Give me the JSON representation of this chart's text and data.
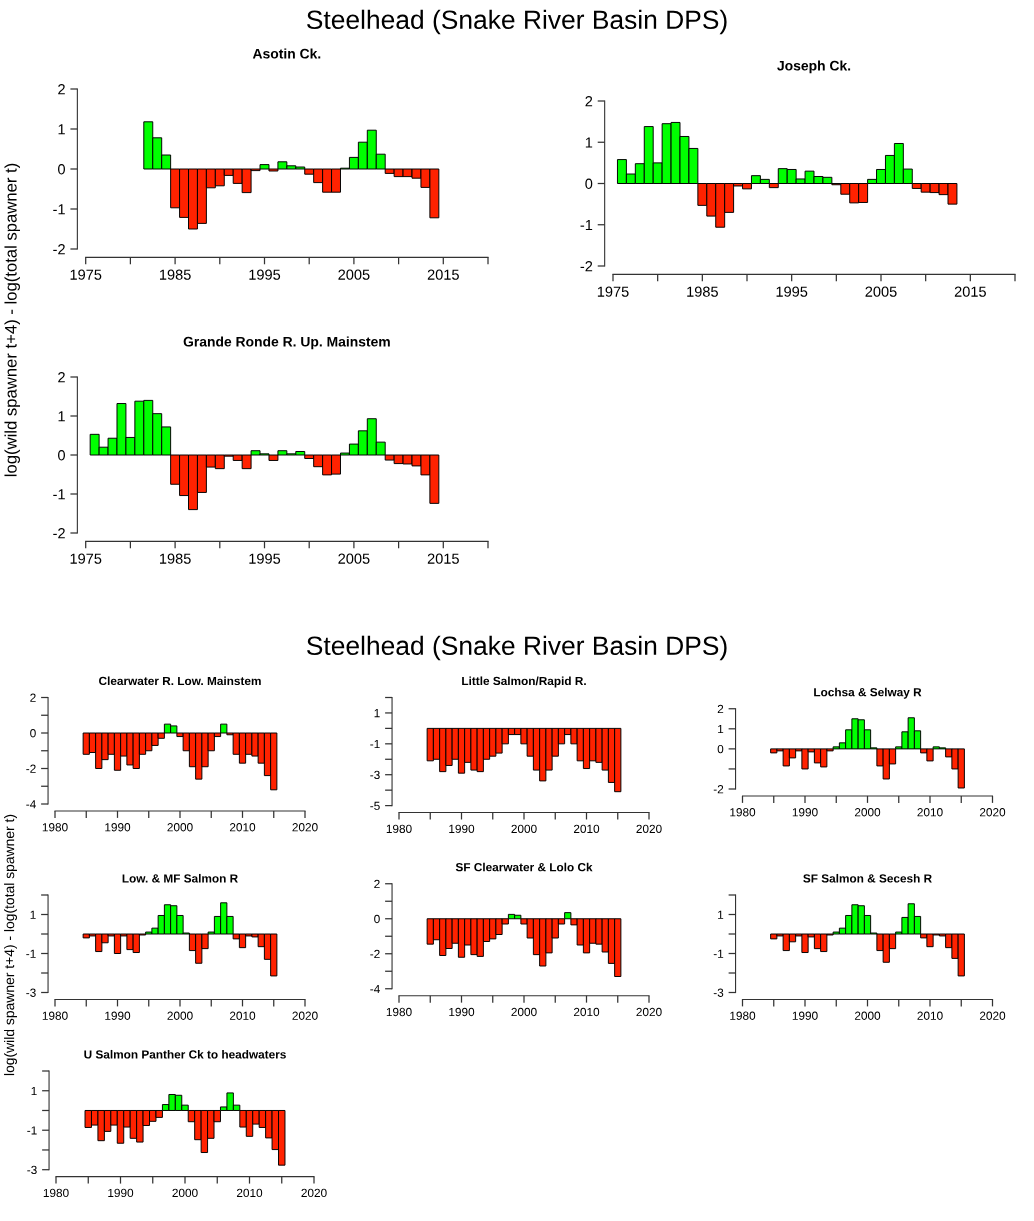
{
  "chart_data": [
    {
      "type": "bar",
      "title": "Asotin Ck.",
      "annotations": [
        "Steelhead (Snake River Basin DPS)"
      ],
      "ylabel": "log(wild spawner t+4) - log(total spawner t)",
      "x": [
        1982,
        1983,
        1984,
        1985,
        1986,
        1987,
        1988,
        1989,
        1990,
        1991,
        1992,
        1993,
        1994,
        1995,
        1996,
        1997,
        1998,
        1999,
        2000,
        2001,
        2002,
        2003,
        2004,
        2005,
        2006,
        2007,
        2008,
        2009,
        2010,
        2011,
        2012,
        2013,
        2014
      ],
      "values": [
        1.18,
        0.78,
        0.35,
        -0.97,
        -1.21,
        -1.5,
        -1.36,
        -0.47,
        -0.42,
        -0.16,
        -0.36,
        -0.59,
        -0.04,
        0.11,
        -0.05,
        0.18,
        0.08,
        0.05,
        -0.13,
        -0.34,
        -0.58,
        -0.58,
        0.02,
        0.29,
        0.67,
        0.97,
        0.37,
        -0.11,
        -0.19,
        -0.19,
        -0.23,
        -0.46,
        -1.22
      ],
      "colors": [
        "#00ff00",
        "#00ff00",
        "#00ff00",
        "#ff2200",
        "#ff2200",
        "#ff2200",
        "#ff2200",
        "#ff2200",
        "#ff2200",
        "#ff2200",
        "#ff2200",
        "#ff2200",
        "#ff2200",
        "#00ff00",
        "#ff2200",
        "#00ff00",
        "#00ff00",
        "#00ff00",
        "#ff2200",
        "#ff2200",
        "#ff2200",
        "#ff2200",
        "#00ff00",
        "#00ff00",
        "#00ff00",
        "#00ff00",
        "#00ff00",
        "#ff2200",
        "#ff2200",
        "#ff2200",
        "#ff2200",
        "#ff2200",
        "#ff2200"
      ],
      "xlim": [
        1975,
        2020
      ],
      "xticks": [
        1975,
        {
          "value": 1980,
          "label": null
        },
        1985,
        {
          "value": 1990,
          "label": null
        },
        1995,
        {
          "value": 2000,
          "label": null
        },
        2005,
        {
          "value": 2010,
          "label": null
        },
        2015,
        {
          "value": 2020,
          "label": null
        }
      ],
      "ylim": [
        -2,
        2
      ],
      "yticks": [
        2,
        1,
        0,
        -1,
        -2
      ]
    },
    {
      "type": "bar",
      "title": "Joseph Ck.",
      "x": [
        1976,
        1977,
        1978,
        1979,
        1980,
        1981,
        1982,
        1983,
        1984,
        1985,
        1986,
        1987,
        1988,
        1989,
        1990,
        1991,
        1992,
        1993,
        1994,
        1995,
        1996,
        1997,
        1998,
        1999,
        2000,
        2001,
        2002,
        2003,
        2004,
        2005,
        2006,
        2007,
        2008,
        2009,
        2010,
        2011,
        2012,
        2013
      ],
      "values": [
        0.58,
        0.23,
        0.48,
        1.38,
        0.5,
        1.45,
        1.48,
        1.14,
        0.85,
        -0.53,
        -0.79,
        -1.06,
        -0.7,
        -0.06,
        -0.13,
        0.19,
        0.1,
        -0.1,
        0.36,
        0.34,
        0.11,
        0.3,
        0.17,
        0.15,
        -0.03,
        -0.26,
        -0.47,
        -0.46,
        0.1,
        0.34,
        0.68,
        0.97,
        0.35,
        -0.12,
        -0.21,
        -0.22,
        -0.27,
        -0.5
      ],
      "colors": [
        "#00ff00",
        "#00ff00",
        "#00ff00",
        "#00ff00",
        "#00ff00",
        "#00ff00",
        "#00ff00",
        "#00ff00",
        "#00ff00",
        "#ff2200",
        "#ff2200",
        "#ff2200",
        "#ff2200",
        "#ff2200",
        "#ff2200",
        "#00ff00",
        "#00ff00",
        "#ff2200",
        "#00ff00",
        "#00ff00",
        "#00ff00",
        "#00ff00",
        "#00ff00",
        "#00ff00",
        "#ff2200",
        "#ff2200",
        "#ff2200",
        "#ff2200",
        "#00ff00",
        "#00ff00",
        "#00ff00",
        "#00ff00",
        "#00ff00",
        "#ff2200",
        "#ff2200",
        "#ff2200",
        "#ff2200",
        "#ff2200"
      ],
      "xlim": [
        1975,
        2020
      ],
      "xticks": [
        1975,
        {
          "value": 1980,
          "label": null
        },
        1985,
        {
          "value": 1990,
          "label": null
        },
        1995,
        {
          "value": 2000,
          "label": null
        },
        2005,
        {
          "value": 2010,
          "label": null
        },
        2015,
        {
          "value": 2020,
          "label": null
        }
      ],
      "ylim": [
        -2,
        2
      ],
      "yticks": [
        2,
        1,
        0,
        -1,
        -2
      ]
    },
    {
      "type": "bar",
      "title": "Grande Ronde R. Up. Mainstem",
      "x": [
        1976,
        1977,
        1978,
        1979,
        1980,
        1981,
        1982,
        1983,
        1984,
        1985,
        1986,
        1987,
        1988,
        1989,
        1990,
        1991,
        1992,
        1993,
        1994,
        1995,
        1996,
        1997,
        1998,
        1999,
        2000,
        2001,
        2002,
        2003,
        2004,
        2005,
        2006,
        2007,
        2008,
        2009,
        2010,
        2011,
        2012,
        2013,
        2014
      ],
      "values": [
        0.53,
        0.2,
        0.43,
        1.32,
        0.45,
        1.38,
        1.4,
        1.06,
        0.72,
        -0.75,
        -1.04,
        -1.4,
        -0.96,
        -0.31,
        -0.35,
        -0.03,
        -0.14,
        -0.35,
        0.11,
        0.03,
        -0.14,
        0.11,
        0.03,
        0.09,
        -0.09,
        -0.3,
        -0.51,
        -0.49,
        0.05,
        0.28,
        0.62,
        0.93,
        0.33,
        -0.13,
        -0.22,
        -0.23,
        -0.28,
        -0.51,
        -1.24
      ],
      "colors": [
        "#00ff00",
        "#00ff00",
        "#00ff00",
        "#00ff00",
        "#00ff00",
        "#00ff00",
        "#00ff00",
        "#00ff00",
        "#00ff00",
        "#ff2200",
        "#ff2200",
        "#ff2200",
        "#ff2200",
        "#ff2200",
        "#ff2200",
        "#ff2200",
        "#ff2200",
        "#ff2200",
        "#00ff00",
        "#00ff00",
        "#ff2200",
        "#00ff00",
        "#00ff00",
        "#00ff00",
        "#ff2200",
        "#ff2200",
        "#ff2200",
        "#ff2200",
        "#00ff00",
        "#00ff00",
        "#00ff00",
        "#00ff00",
        "#00ff00",
        "#ff2200",
        "#ff2200",
        "#ff2200",
        "#ff2200",
        "#ff2200",
        "#ff2200"
      ],
      "xlim": [
        1975,
        2020
      ],
      "xticks": [
        1975,
        {
          "value": 1980,
          "label": null
        },
        1985,
        {
          "value": 1990,
          "label": null
        },
        1995,
        {
          "value": 2000,
          "label": null
        },
        2005,
        {
          "value": 2010,
          "label": null
        },
        2015,
        {
          "value": 2020,
          "label": null
        }
      ],
      "ylim": [
        -2,
        2
      ],
      "yticks": [
        2,
        1,
        0,
        -1,
        -2
      ]
    },
    {
      "type": "bar",
      "title": "Clearwater R. Low. Mainstem",
      "annotations": [
        "Steelhead (Snake River Basin DPS)"
      ],
      "x": [
        1985,
        1986,
        1987,
        1988,
        1989,
        1990,
        1991,
        1992,
        1993,
        1994,
        1995,
        1996,
        1997,
        1998,
        1999,
        2000,
        2001,
        2002,
        2003,
        2004,
        2005,
        2006,
        2007,
        2008,
        2009,
        2010,
        2011,
        2012,
        2013,
        2014,
        2015
      ],
      "values": [
        -1.2,
        -1.1,
        -2.0,
        -1.5,
        -1.2,
        -2.1,
        -1.3,
        -1.8,
        -2.0,
        -1.2,
        -1.0,
        -0.7,
        -0.3,
        0.5,
        0.4,
        -0.2,
        -1.0,
        -1.9,
        -2.6,
        -1.9,
        -1.0,
        -0.2,
        0.5,
        -0.1,
        -1.2,
        -1.7,
        -1.2,
        -1.3,
        -1.7,
        -2.4,
        -3.2
      ],
      "colors": [
        "#ff2200",
        "#ff2200",
        "#ff2200",
        "#ff2200",
        "#ff2200",
        "#ff2200",
        "#ff2200",
        "#ff2200",
        "#ff2200",
        "#ff2200",
        "#ff2200",
        "#ff2200",
        "#ff2200",
        "#00ff00",
        "#00ff00",
        "#ff2200",
        "#ff2200",
        "#ff2200",
        "#ff2200",
        "#ff2200",
        "#ff2200",
        "#ff2200",
        "#00ff00",
        "#ff2200",
        "#ff2200",
        "#ff2200",
        "#ff2200",
        "#ff2200",
        "#ff2200",
        "#ff2200",
        "#ff2200"
      ],
      "xlim": [
        1980,
        2020
      ],
      "xticks": [
        1980,
        {
          "value": 1985,
          "label": null
        },
        1990,
        {
          "value": 1995,
          "label": null
        },
        2000,
        {
          "value": 2005,
          "label": null
        },
        2010,
        {
          "value": 2015,
          "label": null
        },
        2020
      ],
      "ylim": [
        -4,
        2
      ],
      "yticks": [
        2,
        {
          "value": 1,
          "label": null
        },
        0,
        {
          "value": -1,
          "label": null
        },
        -2,
        {
          "value": -3,
          "label": null
        },
        -4
      ]
    },
    {
      "type": "bar",
      "title": "Little Salmon/Rapid R.",
      "x": [
        1985,
        1986,
        1987,
        1988,
        1989,
        1990,
        1991,
        1992,
        1993,
        1994,
        1995,
        1996,
        1997,
        1998,
        1999,
        2000,
        2001,
        2002,
        2003,
        2004,
        2005,
        2006,
        2007,
        2008,
        2009,
        2010,
        2011,
        2012,
        2013,
        2014,
        2015
      ],
      "values": [
        -2.1,
        -2.0,
        -2.8,
        -2.4,
        -2.0,
        -2.9,
        -2.2,
        -2.7,
        -2.8,
        -2.0,
        -1.8,
        -1.6,
        -1.0,
        -0.4,
        -0.4,
        -1.0,
        -1.8,
        -2.7,
        -3.4,
        -2.7,
        -1.8,
        -1.0,
        -0.4,
        -1.0,
        -2.1,
        -2.6,
        -2.1,
        -2.2,
        -2.7,
        -3.5,
        -4.1
      ],
      "colors": [
        "#ff2200",
        "#ff2200",
        "#ff2200",
        "#ff2200",
        "#ff2200",
        "#ff2200",
        "#ff2200",
        "#ff2200",
        "#ff2200",
        "#ff2200",
        "#ff2200",
        "#ff2200",
        "#ff2200",
        "#ff2200",
        "#ff2200",
        "#ff2200",
        "#ff2200",
        "#ff2200",
        "#ff2200",
        "#ff2200",
        "#ff2200",
        "#ff2200",
        "#ff2200",
        "#ff2200",
        "#ff2200",
        "#ff2200",
        "#ff2200",
        "#ff2200",
        "#ff2200",
        "#ff2200",
        "#ff2200"
      ],
      "xlim": [
        1980,
        2020
      ],
      "xticks": [
        1980,
        {
          "value": 1985,
          "label": null
        },
        1990,
        {
          "value": 1995,
          "label": null
        },
        2000,
        {
          "value": 2005,
          "label": null
        },
        2010,
        {
          "value": 2015,
          "label": null
        },
        2020
      ],
      "ylim": [
        -5,
        2
      ],
      "yticks": [
        {
          "value": 2,
          "label": null
        },
        1,
        {
          "value": 0,
          "label": null
        },
        -1,
        {
          "value": -2,
          "label": null
        },
        -3,
        {
          "value": -4,
          "label": null
        },
        -5
      ]
    },
    {
      "type": "bar",
      "title": "Lochsa & Selway R",
      "x": [
        1985,
        1986,
        1987,
        1988,
        1989,
        1990,
        1991,
        1992,
        1993,
        1994,
        1995,
        1996,
        1997,
        1998,
        1999,
        2000,
        2001,
        2002,
        2003,
        2004,
        2005,
        2006,
        2007,
        2008,
        2009,
        2010,
        2011,
        2012,
        2013,
        2014,
        2015
      ],
      "values": [
        -0.2,
        -0.1,
        -0.85,
        -0.45,
        -0.1,
        -1.0,
        -0.15,
        -0.7,
        -0.9,
        -0.1,
        0.1,
        0.3,
        0.95,
        1.5,
        1.45,
        0.95,
        0.05,
        -0.85,
        -1.5,
        -0.75,
        0.1,
        0.85,
        1.55,
        0.9,
        -0.2,
        -0.6,
        0.1,
        0.05,
        -0.4,
        -1.0,
        -1.95
      ],
      "colors": [
        "#ff2200",
        "#ff2200",
        "#ff2200",
        "#ff2200",
        "#ff2200",
        "#ff2200",
        "#ff2200",
        "#ff2200",
        "#ff2200",
        "#ff2200",
        "#00ff00",
        "#00ff00",
        "#00ff00",
        "#00ff00",
        "#00ff00",
        "#00ff00",
        "#00ff00",
        "#ff2200",
        "#ff2200",
        "#ff2200",
        "#00ff00",
        "#00ff00",
        "#00ff00",
        "#00ff00",
        "#ff2200",
        "#ff2200",
        "#00ff00",
        "#00ff00",
        "#ff2200",
        "#ff2200",
        "#ff2200"
      ],
      "xlim": [
        1980,
        2020
      ],
      "xticks": [
        1980,
        {
          "value": 1985,
          "label": null
        },
        1990,
        {
          "value": 1995,
          "label": null
        },
        2000,
        {
          "value": 2005,
          "label": null
        },
        2010,
        {
          "value": 2015,
          "label": null
        },
        2020
      ],
      "ylim": [
        -2,
        2
      ],
      "yticks": [
        2,
        1,
        0,
        {
          "value": -1,
          "label": null
        },
        -2
      ]
    },
    {
      "type": "bar",
      "title": "Low. & MF Salmon R",
      "ylabel": "log(wild spawner t+4) - log(total spawner t)",
      "x": [
        1985,
        1986,
        1987,
        1988,
        1989,
        1990,
        1991,
        1992,
        1993,
        1994,
        1995,
        1996,
        1997,
        1998,
        1999,
        2000,
        2001,
        2002,
        2003,
        2004,
        2005,
        2006,
        2007,
        2008,
        2009,
        2010,
        2011,
        2012,
        2013,
        2014,
        2015
      ],
      "values": [
        -0.2,
        -0.1,
        -0.9,
        -0.45,
        -0.1,
        -1.0,
        -0.1,
        -0.8,
        -0.95,
        -0.05,
        0.1,
        0.3,
        0.95,
        1.5,
        1.45,
        0.95,
        0.05,
        -0.85,
        -1.5,
        -0.75,
        0.1,
        0.9,
        1.6,
        0.9,
        -0.25,
        -0.7,
        -0.1,
        -0.15,
        -0.65,
        -1.3,
        -2.15
      ],
      "colors": [
        "#ff2200",
        "#ff2200",
        "#ff2200",
        "#ff2200",
        "#ff2200",
        "#ff2200",
        "#ff2200",
        "#ff2200",
        "#ff2200",
        "#ff2200",
        "#00ff00",
        "#00ff00",
        "#00ff00",
        "#00ff00",
        "#00ff00",
        "#00ff00",
        "#00ff00",
        "#ff2200",
        "#ff2200",
        "#ff2200",
        "#00ff00",
        "#00ff00",
        "#00ff00",
        "#00ff00",
        "#ff2200",
        "#ff2200",
        "#ff2200",
        "#ff2200",
        "#ff2200",
        "#ff2200",
        "#ff2200"
      ],
      "xlim": [
        1980,
        2020
      ],
      "xticks": [
        1980,
        {
          "value": 1985,
          "label": null
        },
        1990,
        {
          "value": 1995,
          "label": null
        },
        2000,
        {
          "value": 2005,
          "label": null
        },
        2010,
        {
          "value": 2015,
          "label": null
        },
        2020
      ],
      "ylim": [
        -3,
        2
      ],
      "yticks": [
        {
          "value": 2,
          "label": null
        },
        1,
        {
          "value": 0,
          "label": null
        },
        -1,
        {
          "value": -2,
          "label": null
        },
        -3
      ]
    },
    {
      "type": "bar",
      "title": "SF Clearwater & Lolo Ck",
      "x": [
        1985,
        1986,
        1987,
        1988,
        1989,
        1990,
        1991,
        1992,
        1993,
        1994,
        1995,
        1996,
        1997,
        1998,
        1999,
        2000,
        2001,
        2002,
        2003,
        2004,
        2005,
        2006,
        2007,
        2008,
        2009,
        2010,
        2011,
        2012,
        2013,
        2014,
        2015
      ],
      "values": [
        -1.45,
        -1.2,
        -2.1,
        -1.7,
        -1.4,
        -2.2,
        -1.5,
        -2.05,
        -2.15,
        -1.3,
        -1.15,
        -0.9,
        -0.3,
        0.25,
        0.2,
        -0.3,
        -1.1,
        -2.05,
        -2.7,
        -1.95,
        -1.1,
        -0.3,
        0.35,
        -0.35,
        -1.5,
        -1.95,
        -1.4,
        -1.45,
        -1.9,
        -2.55,
        -3.3
      ],
      "colors": [
        "#ff2200",
        "#ff2200",
        "#ff2200",
        "#ff2200",
        "#ff2200",
        "#ff2200",
        "#ff2200",
        "#ff2200",
        "#ff2200",
        "#ff2200",
        "#ff2200",
        "#ff2200",
        "#ff2200",
        "#00ff00",
        "#00ff00",
        "#ff2200",
        "#ff2200",
        "#ff2200",
        "#ff2200",
        "#ff2200",
        "#ff2200",
        "#ff2200",
        "#00ff00",
        "#ff2200",
        "#ff2200",
        "#ff2200",
        "#ff2200",
        "#ff2200",
        "#ff2200",
        "#ff2200",
        "#ff2200"
      ],
      "xlim": [
        1980,
        2020
      ],
      "xticks": [
        1980,
        {
          "value": 1985,
          "label": null
        },
        1990,
        {
          "value": 1995,
          "label": null
        },
        2000,
        {
          "value": 2005,
          "label": null
        },
        2010,
        {
          "value": 2015,
          "label": null
        },
        2020
      ],
      "ylim": [
        -4,
        2
      ],
      "yticks": [
        2,
        {
          "value": 1,
          "label": null
        },
        0,
        {
          "value": -1,
          "label": null
        },
        -2,
        {
          "value": -3,
          "label": null
        },
        -4
      ]
    },
    {
      "type": "bar",
      "title": "SF Salmon & Secesh R",
      "x": [
        1985,
        1986,
        1987,
        1988,
        1989,
        1990,
        1991,
        1992,
        1993,
        1994,
        1995,
        1996,
        1997,
        1998,
        1999,
        2000,
        2001,
        2002,
        2003,
        2004,
        2005,
        2006,
        2007,
        2008,
        2009,
        2010,
        2011,
        2012,
        2013,
        2014,
        2015
      ],
      "values": [
        -0.25,
        -0.1,
        -0.85,
        -0.4,
        -0.1,
        -0.95,
        -0.15,
        -0.75,
        -0.9,
        -0.05,
        0.1,
        0.3,
        0.95,
        1.5,
        1.45,
        0.95,
        0.05,
        -0.85,
        -1.45,
        -0.75,
        0.1,
        0.85,
        1.55,
        0.9,
        -0.2,
        -0.65,
        -0.05,
        -0.1,
        -0.7,
        -1.25,
        -2.15
      ],
      "colors": [
        "#ff2200",
        "#ff2200",
        "#ff2200",
        "#ff2200",
        "#ff2200",
        "#ff2200",
        "#ff2200",
        "#ff2200",
        "#ff2200",
        "#ff2200",
        "#00ff00",
        "#00ff00",
        "#00ff00",
        "#00ff00",
        "#00ff00",
        "#00ff00",
        "#00ff00",
        "#ff2200",
        "#ff2200",
        "#ff2200",
        "#00ff00",
        "#00ff00",
        "#00ff00",
        "#00ff00",
        "#ff2200",
        "#ff2200",
        "#ff2200",
        "#ff2200",
        "#ff2200",
        "#ff2200",
        "#ff2200"
      ],
      "xlim": [
        1980,
        2020
      ],
      "xticks": [
        1980,
        {
          "value": 1985,
          "label": null
        },
        1990,
        {
          "value": 1995,
          "label": null
        },
        2000,
        {
          "value": 2005,
          "label": null
        },
        2010,
        {
          "value": 2015,
          "label": null
        },
        2020
      ],
      "ylim": [
        -3,
        2
      ],
      "yticks": [
        {
          "value": 2,
          "label": null
        },
        1,
        {
          "value": 0,
          "label": null
        },
        -1,
        {
          "value": -2,
          "label": null
        },
        -3
      ]
    },
    {
      "type": "bar",
      "title": "U Salmon Panther Ck to headwaters",
      "x": [
        1985,
        1986,
        1987,
        1988,
        1989,
        1990,
        1991,
        1992,
        1993,
        1994,
        1995,
        1996,
        1997,
        1998,
        1999,
        2000,
        2001,
        2002,
        2003,
        2004,
        2005,
        2006,
        2007,
        2008,
        2009,
        2010,
        2011,
        2012,
        2013,
        2014,
        2015
      ],
      "values": [
        -0.86,
        -0.74,
        -1.53,
        -1.06,
        -0.74,
        -1.66,
        -0.84,
        -1.41,
        -1.6,
        -0.76,
        -0.55,
        -0.35,
        0.3,
        0.81,
        0.77,
        0.27,
        -0.57,
        -1.48,
        -2.13,
        -1.41,
        -0.57,
        0.18,
        0.89,
        0.27,
        -0.84,
        -1.31,
        -0.69,
        -0.86,
        -1.39,
        -1.98,
        -2.77
      ],
      "colors": [
        "#ff2200",
        "#ff2200",
        "#ff2200",
        "#ff2200",
        "#ff2200",
        "#ff2200",
        "#ff2200",
        "#ff2200",
        "#ff2200",
        "#ff2200",
        "#ff2200",
        "#ff2200",
        "#00ff00",
        "#00ff00",
        "#00ff00",
        "#00ff00",
        "#ff2200",
        "#ff2200",
        "#ff2200",
        "#ff2200",
        "#ff2200",
        "#00ff00",
        "#00ff00",
        "#00ff00",
        "#ff2200",
        "#ff2200",
        "#ff2200",
        "#ff2200",
        "#ff2200",
        "#ff2200",
        "#ff2200"
      ],
      "xlim": [
        1980,
        2020
      ],
      "xticks": [
        1980,
        {
          "value": 1985,
          "label": null
        },
        1990,
        {
          "value": 1995,
          "label": null
        },
        2000,
        {
          "value": 2005,
          "label": null
        },
        2010,
        {
          "value": 2015,
          "label": null
        },
        2020
      ],
      "ylim": [
        -3,
        2
      ],
      "yticks": [
        {
          "value": 2,
          "label": null
        },
        1,
        {
          "value": 0,
          "label": null
        },
        -1,
        {
          "value": -2,
          "label": null
        },
        -3
      ]
    }
  ]
}
